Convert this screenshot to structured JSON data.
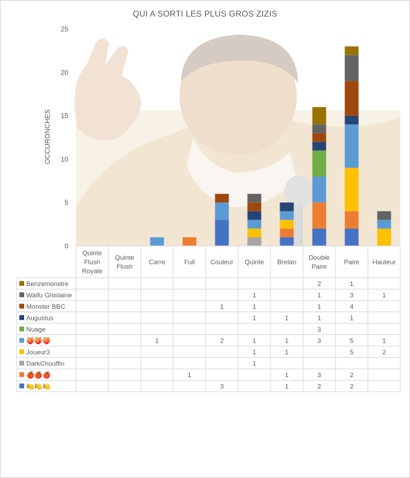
{
  "chart_data": {
    "type": "bar",
    "stacked": true,
    "title": "QUI A SORTI LES PLUS GROS ZIZIS",
    "xlabel": "",
    "ylabel": "OCCURONCHES",
    "ylim": [
      0,
      25
    ],
    "yticks": [
      0,
      5,
      10,
      15,
      20,
      25
    ],
    "grid": false,
    "legend": "data-table-left",
    "categories": [
      "Quinte Flush Royale",
      "Quinte Flush",
      "Carre",
      "Full",
      "Couleur",
      "Quinte",
      "Brelan",
      "Double Paire",
      "Paire",
      "Hauteur"
    ],
    "series": [
      {
        "name": "🍋🍋🍋",
        "color": "#4472C4",
        "values": [
          null,
          null,
          null,
          null,
          3,
          null,
          1,
          2,
          2,
          null
        ]
      },
      {
        "name": "🍎🍎🍎",
        "color": "#ED7D31",
        "values": [
          null,
          null,
          null,
          1,
          null,
          null,
          1,
          3,
          2,
          null
        ]
      },
      {
        "name": "DarkChouffin",
        "color": "#A5A5A5",
        "values": [
          null,
          null,
          null,
          null,
          null,
          1,
          null,
          null,
          null,
          null
        ]
      },
      {
        "name": "Joueur3",
        "color": "#FFC000",
        "values": [
          null,
          null,
          null,
          null,
          null,
          1,
          1,
          null,
          5,
          2
        ]
      },
      {
        "name": "🍑🍑🍑",
        "color": "#5B9BD5",
        "values": [
          null,
          null,
          1,
          null,
          2,
          1,
          1,
          3,
          5,
          1
        ]
      },
      {
        "name": "Nuage",
        "color": "#70AD47",
        "values": [
          null,
          null,
          null,
          null,
          null,
          null,
          null,
          3,
          null,
          null
        ]
      },
      {
        "name": "Augustus",
        "color": "#264478",
        "values": [
          null,
          null,
          null,
          null,
          null,
          1,
          1,
          1,
          1,
          null
        ]
      },
      {
        "name": "Monster BBC",
        "color": "#9E480E",
        "values": [
          null,
          null,
          null,
          null,
          1,
          1,
          null,
          1,
          4,
          null
        ]
      },
      {
        "name": "Waifu Ghislaine",
        "color": "#636363",
        "values": [
          null,
          null,
          null,
          null,
          null,
          1,
          null,
          1,
          3,
          1
        ]
      },
      {
        "name": "Benzemonstre",
        "color": "#997300",
        "values": [
          null,
          null,
          null,
          null,
          null,
          null,
          null,
          2,
          1,
          null
        ]
      }
    ]
  }
}
